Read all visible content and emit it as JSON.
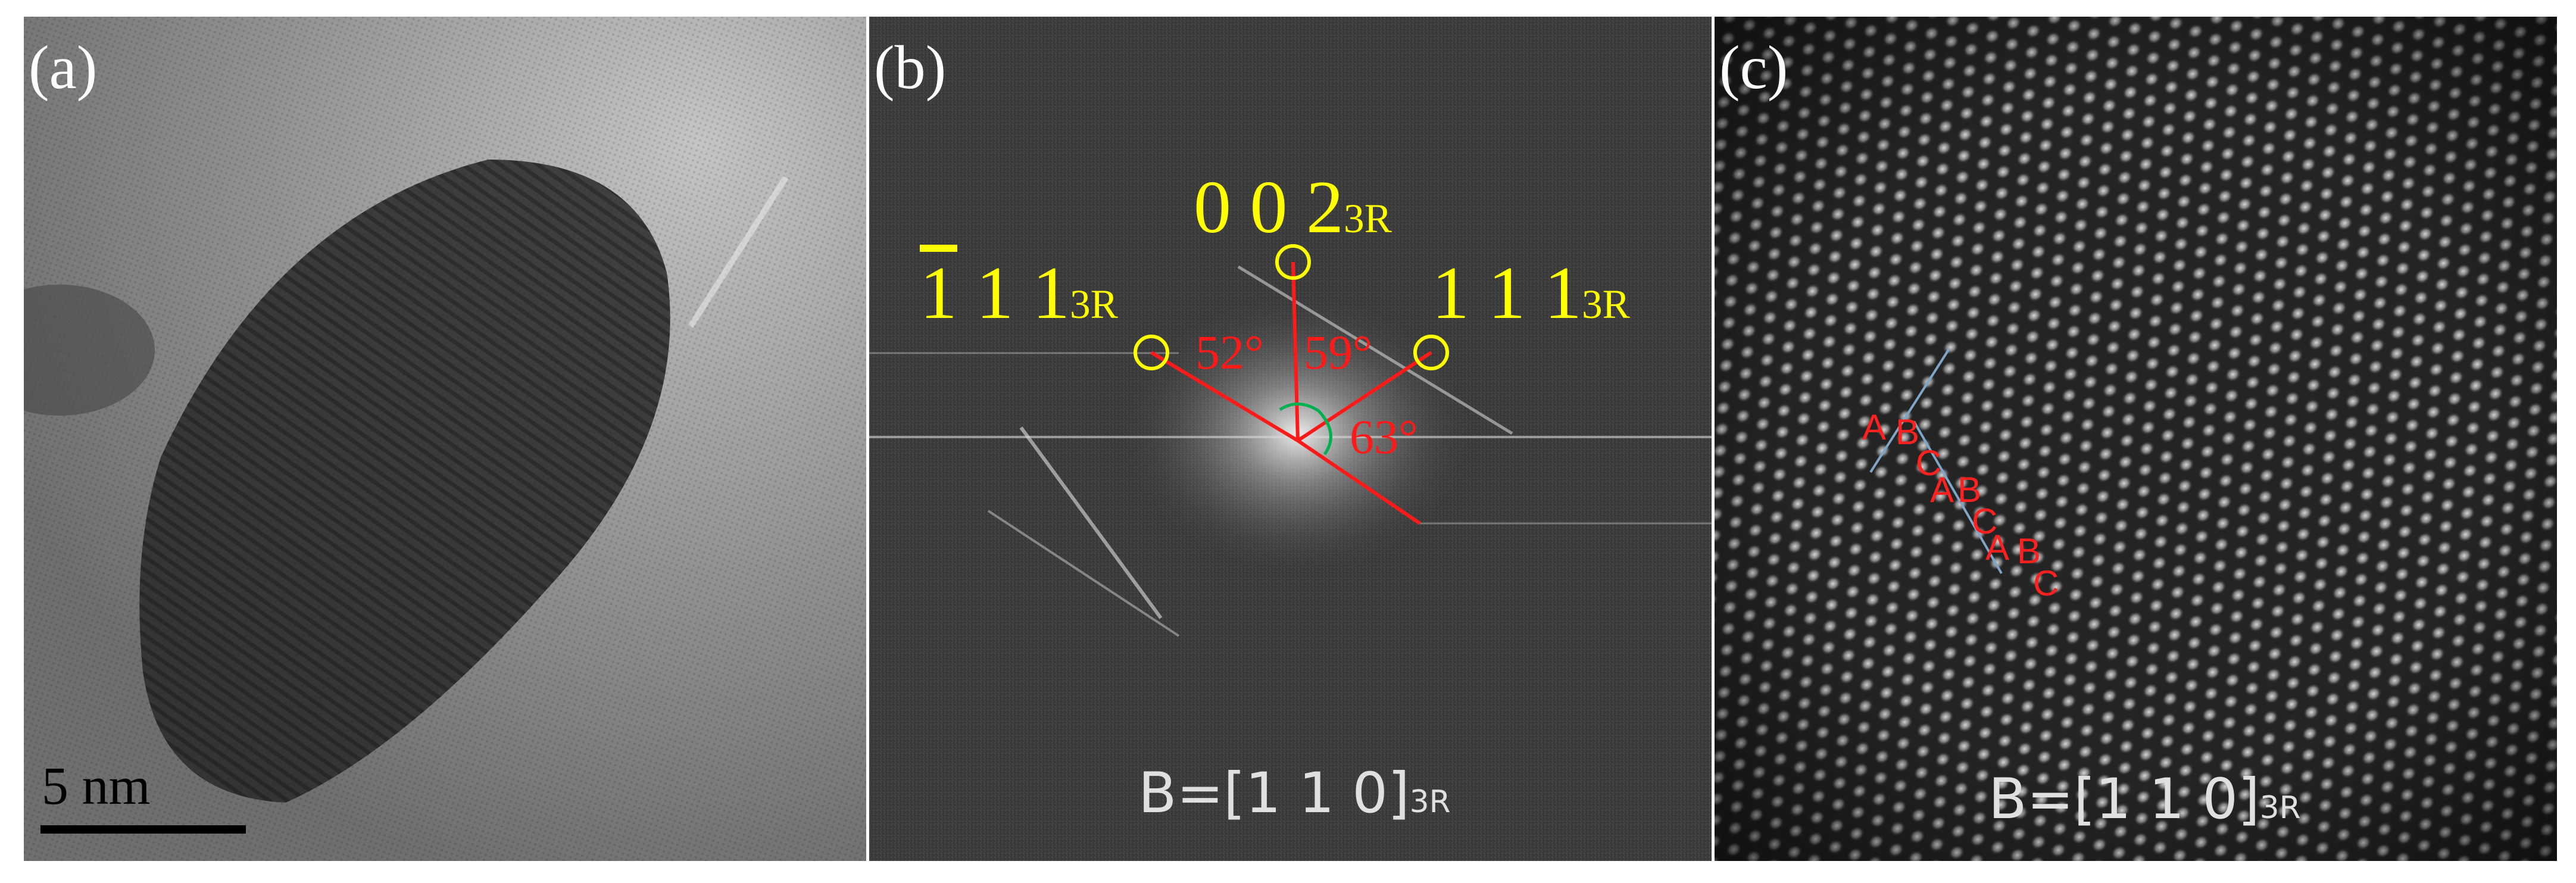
{
  "panels": [
    {
      "label": "(a)",
      "scale_bar": "5 nm"
    },
    {
      "label": "(b)",
      "spots": [
        {
          "indices": "0 0 2",
          "subscript": "3R"
        },
        {
          "bar": "1",
          "indices": " 1 1",
          "subscript": "3R"
        },
        {
          "indices": "1 1 1",
          "subscript": "3R"
        }
      ],
      "angles": [
        "52°",
        "59°",
        "63°"
      ],
      "zone_axis": {
        "text": "B=[1 1 0]",
        "subscript": "3R"
      }
    },
    {
      "label": "(c)",
      "stacking": [
        "A",
        "B",
        "C",
        "A",
        "B",
        "C",
        "A",
        "B",
        "C"
      ],
      "zone_axis": {
        "text": "B=[1 1 0]",
        "subscript": "3R"
      }
    }
  ],
  "colors": {
    "label": "#ffffff",
    "miller": "#ffff00",
    "angle": "#ff1a1a",
    "stacking": "#ff2020",
    "arc": "#00b050",
    "guide_line": "#7fa6c8"
  }
}
